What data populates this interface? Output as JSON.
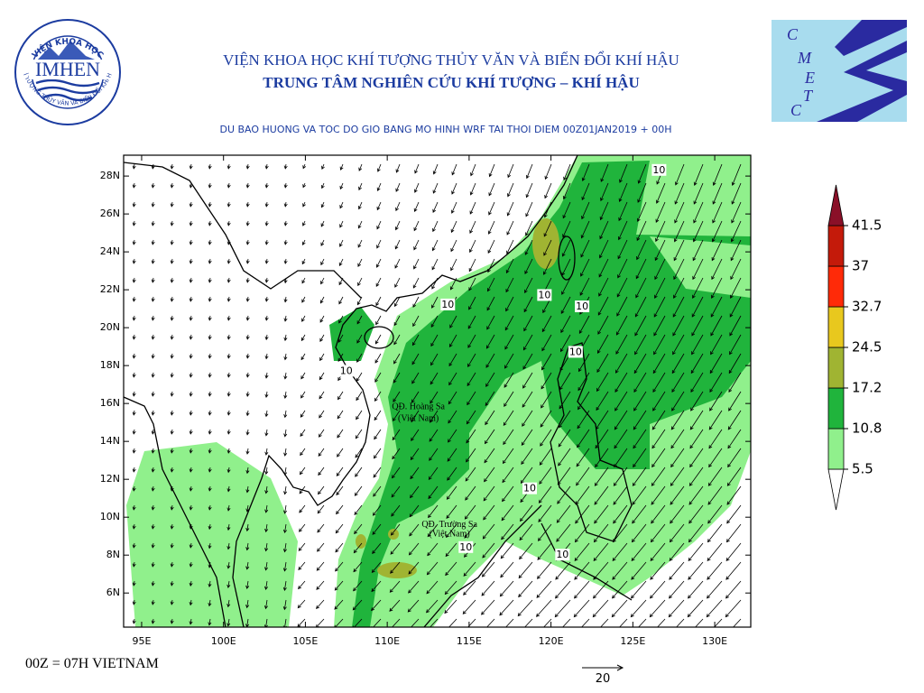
{
  "header": {
    "logo_left": {
      "top_text": "VIỆN KHOA HỌC",
      "name": "IMHEN",
      "bottom_text": "KHÍ TƯỢNG THỦY VĂN VÀ BIẾN ĐỔI KHÍ HẬU"
    },
    "title": "VIỆN KHOA HỌC KHÍ TƯỢNG THỦY VĂN VÀ BIẾN ĐỔI KHÍ HẬU",
    "subtitle": "TRUNG TÂM NGHIÊN CỨU KHÍ TƯỢNG – KHÍ HẬU",
    "logo_right": {
      "letters": [
        "C",
        "M",
        "E",
        "T",
        "C"
      ]
    }
  },
  "map": {
    "title": "DU BAO HUONG VA TOC DO GIO BANG MO HINH WRF TAI THOI DIEM  00Z01JAN2019 + 00H",
    "lon_range": [
      93.9,
      132.2
    ],
    "lat_range": [
      4.2,
      29.1
    ],
    "lon_ticks": [
      {
        "value": 95,
        "label": "95E"
      },
      {
        "value": 100,
        "label": "100E"
      },
      {
        "value": 105,
        "label": "105E"
      },
      {
        "value": 110,
        "label": "110E"
      },
      {
        "value": 115,
        "label": "115E"
      },
      {
        "value": 120,
        "label": "120E"
      },
      {
        "value": 125,
        "label": "125E"
      },
      {
        "value": 130,
        "label": "130E"
      }
    ],
    "lat_ticks": [
      {
        "value": 28,
        "label": "28N"
      },
      {
        "value": 26,
        "label": "26N"
      },
      {
        "value": 24,
        "label": "24N"
      },
      {
        "value": 22,
        "label": "22N"
      },
      {
        "value": 20,
        "label": "20N"
      },
      {
        "value": 18,
        "label": "18N"
      },
      {
        "value": 16,
        "label": "16N"
      },
      {
        "value": 14,
        "label": "14N"
      },
      {
        "value": 12,
        "label": "12N"
      },
      {
        "value": 10,
        "label": "10N"
      },
      {
        "value": 8,
        "label": "8N"
      },
      {
        "value": 6,
        "label": "6N"
      }
    ],
    "contour_labels": [
      {
        "text": "10",
        "lon": 113.7,
        "lat": 21.2
      },
      {
        "text": "10",
        "lon": 107.5,
        "lat": 17.7
      },
      {
        "text": "10",
        "lon": 119.6,
        "lat": 21.7
      },
      {
        "text": "10",
        "lon": 121.9,
        "lat": 21.1
      },
      {
        "text": "10",
        "lon": 121.5,
        "lat": 18.7
      },
      {
        "text": "10",
        "lon": 126.6,
        "lat": 28.3
      },
      {
        "text": "10",
        "lon": 118.7,
        "lat": 11.5
      },
      {
        "text": "10",
        "lon": 114.8,
        "lat": 8.4
      },
      {
        "text": "10",
        "lon": 120.7,
        "lat": 8.0
      }
    ],
    "place_labels": [
      {
        "text": "QĐ. Hoàng Sa",
        "lon": 111.9,
        "lat": 15.8
      },
      {
        "text": "(Việt Nam)",
        "lon": 111.9,
        "lat": 15.2
      },
      {
        "text": "QĐ. Trường Sa",
        "lon": 113.8,
        "lat": 9.6
      },
      {
        "text": "(Việt Nam)",
        "lon": 113.8,
        "lat": 9.1
      }
    ],
    "colorbar": {
      "levels": [
        5.5,
        10.8,
        17.2,
        24.5,
        32.7,
        37,
        41.5
      ],
      "colors": [
        "#ffffff",
        "#90f08c",
        "#20b43c",
        "#a0b432",
        "#e8c81e",
        "#ff2a08",
        "#c41a0a",
        "#8a1028"
      ]
    },
    "reference_vector": {
      "value": 20,
      "label": "20"
    }
  },
  "footer": "00Z = 07H VIETNAM"
}
